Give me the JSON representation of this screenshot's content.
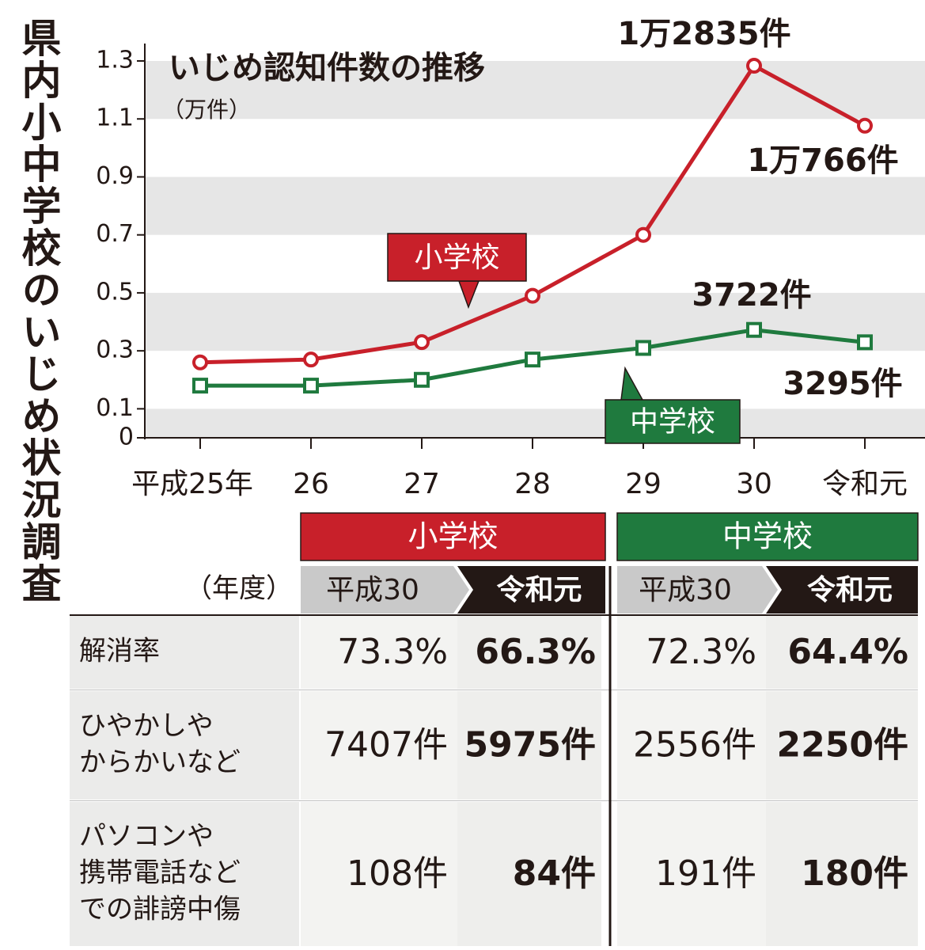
{
  "side_title": "県内小中学校のいじめ状況調査",
  "chart_data": {
    "type": "line",
    "title": "いじめ認知件数の推移",
    "y_label": "（万件）",
    "categories": [
      "平成25年",
      "26",
      "27",
      "28",
      "29",
      "30",
      "令和元"
    ],
    "series": [
      {
        "name": "小学校",
        "color": "#c8202a",
        "marker": "circle",
        "values": [
          0.26,
          0.27,
          0.33,
          0.49,
          0.7,
          1.2835,
          1.0766
        ],
        "value_labels": [
          null,
          null,
          null,
          null,
          null,
          "1万2835件",
          "1万766件"
        ]
      },
      {
        "name": "中学校",
        "color": "#1f7a3e",
        "marker": "square",
        "values": [
          0.18,
          0.18,
          0.2,
          0.27,
          0.31,
          0.3722,
          0.3295
        ],
        "value_labels": [
          null,
          null,
          null,
          null,
          null,
          "3722件",
          "3295件"
        ]
      }
    ],
    "ylim": [
      0,
      1.3
    ],
    "yticks": [
      0,
      0.1,
      0.3,
      0.5,
      0.7,
      0.9,
      1.1,
      1.3
    ],
    "grid": "bands"
  },
  "table": {
    "groups": [
      "小学校",
      "中学校"
    ],
    "year_label": "（年度）",
    "years": [
      "平成30",
      "令和元",
      "平成30",
      "令和元"
    ],
    "rows": [
      {
        "label": [
          "解消率"
        ],
        "cells": [
          "73.3%",
          "66.3%",
          "72.3%",
          "64.4%"
        ]
      },
      {
        "label": [
          "ひやかしや",
          "からかいなど"
        ],
        "cells": [
          "7407件",
          "5975件",
          "2556件",
          "2250件"
        ]
      },
      {
        "label": [
          "パソコンや",
          "携帯電話など",
          "での誹謗中傷"
        ],
        "cells": [
          "108件",
          "84件",
          "191件",
          "180件"
        ]
      }
    ]
  }
}
